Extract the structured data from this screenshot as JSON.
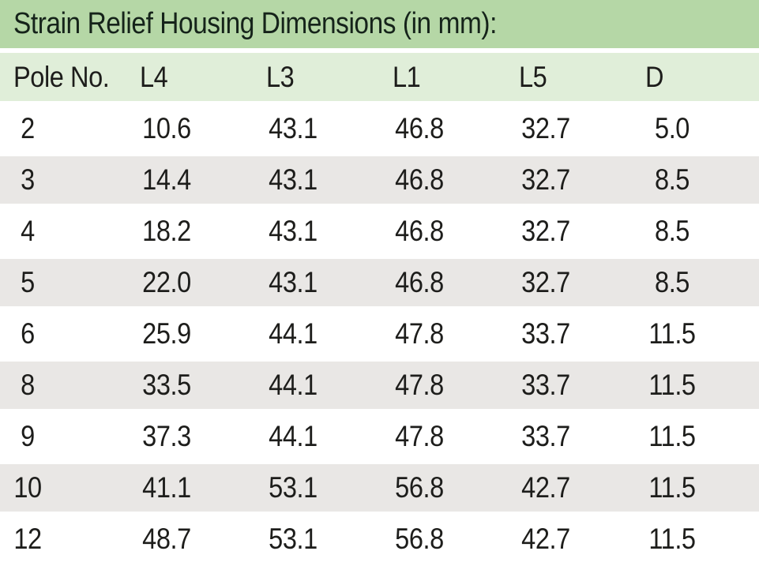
{
  "table": {
    "title": "Strain Relief Housing Dimensions (in mm):",
    "columns": [
      "Pole No.",
      "L4",
      "L3",
      "L1",
      "L5",
      "D"
    ],
    "rows": [
      [
        "2",
        "10.6",
        "43.1",
        "46.8",
        "32.7",
        "5.0"
      ],
      [
        "3",
        "14.4",
        "43.1",
        "46.8",
        "32.7",
        "8.5"
      ],
      [
        "4",
        "18.2",
        "43.1",
        "46.8",
        "32.7",
        "8.5"
      ],
      [
        "5",
        "22.0",
        "43.1",
        "46.8",
        "32.7",
        "8.5"
      ],
      [
        "6",
        "25.9",
        "44.1",
        "47.8",
        "33.7",
        "11.5"
      ],
      [
        "8",
        "33.5",
        "44.1",
        "47.8",
        "33.7",
        "11.5"
      ],
      [
        "9",
        "37.3",
        "44.1",
        "47.8",
        "33.7",
        "11.5"
      ],
      [
        "10",
        "41.1",
        "53.1",
        "56.8",
        "42.7",
        "11.5"
      ],
      [
        "12",
        "48.7",
        "53.1",
        "56.8",
        "42.7",
        "11.5"
      ]
    ],
    "colors": {
      "title_bar_bg": "#b5d7a6",
      "header_bg": "#e0eed9",
      "row_bg": "#ffffff",
      "row_alt_bg": "#e9e7e5",
      "title_text": "#15231a",
      "body_text": "#1d1d1b"
    }
  }
}
